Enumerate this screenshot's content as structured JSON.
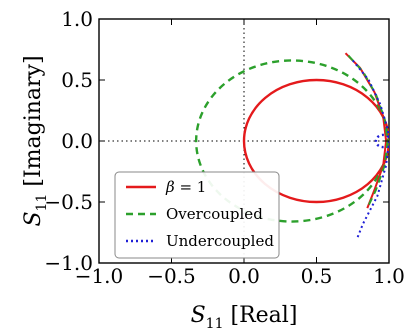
{
  "chart_data": {
    "type": "line",
    "title": "",
    "xlabel": {
      "symbol": "S",
      "sub": "11",
      "text": "[Real]"
    },
    "ylabel": {
      "symbol": "S",
      "sub": "11",
      "text": "[Imaginary]"
    },
    "xlim": [
      -1.0,
      1.0
    ],
    "ylim": [
      -1.0,
      1.0
    ],
    "xticks": [
      "−1.0",
      "−0.5",
      "0.0",
      "0.5",
      "1.0"
    ],
    "yticks": [
      "−1.0",
      "−0.5",
      "0.0",
      "0.5",
      "1.0"
    ],
    "xtick_values": [
      -1.0,
      -0.5,
      0.0,
      0.5,
      1.0
    ],
    "ytick_values": [
      -1.0,
      -0.5,
      0.0,
      0.5,
      1.0
    ],
    "reference_lines": {
      "x": 0.0,
      "y": 0.0,
      "style": "dotted"
    },
    "legend_position": "lower-left",
    "series": [
      {
        "name": "β = 1",
        "name_parts": {
          "symbol": "β",
          "rest": " = 1"
        },
        "color": "#e41a1c",
        "style": "solid",
        "circle_center": [
          0.5,
          0.0
        ],
        "circle_radius": 0.5,
        "arc_theta_deg": [
          -180,
          180
        ],
        "outer_arc": {
          "center": [
            0.5,
            0.0
          ],
          "radius": 0.5,
          "range_deg": [
            0,
            0
          ]
        }
      },
      {
        "name": "Overcoupled",
        "color": "#2ca02c",
        "style": "dashed",
        "circle_center": [
          0.33,
          0.0
        ],
        "circle_radius": 0.66,
        "arc_theta_deg": [
          -180,
          180
        ]
      },
      {
        "name": "Undercoupled",
        "color": "#1f1fd6",
        "style": "dotted",
        "circle_center": [
          0.96,
          0.0
        ],
        "circle_radius": 0.05,
        "arc_theta_deg": [
          -180,
          180
        ]
      }
    ],
    "outer_arcs": [
      {
        "series": "β = 1",
        "points": [
          [
            0.7,
            0.72
          ],
          [
            0.8,
            0.6
          ],
          [
            0.9,
            0.4
          ],
          [
            0.96,
            0.2
          ],
          [
            0.98,
            0.0
          ],
          [
            0.96,
            -0.2
          ],
          [
            0.9,
            -0.4
          ],
          [
            0.85,
            -0.55
          ]
        ]
      },
      {
        "series": "Overcoupled",
        "points": [
          [
            0.72,
            0.7
          ],
          [
            0.82,
            0.57
          ],
          [
            0.91,
            0.38
          ],
          [
            0.97,
            0.18
          ],
          [
            0.99,
            0.0
          ],
          [
            0.97,
            -0.2
          ],
          [
            0.91,
            -0.4
          ],
          [
            0.85,
            -0.55
          ]
        ]
      },
      {
        "series": "Undercoupled",
        "points": [
          [
            0.75,
            0.66
          ],
          [
            0.86,
            0.5
          ],
          [
            0.94,
            0.3
          ],
          [
            0.99,
            0.1
          ],
          [
            1.0,
            0.0
          ],
          [
            0.98,
            -0.2
          ],
          [
            0.92,
            -0.45
          ],
          [
            0.82,
            -0.68
          ],
          [
            0.78,
            -0.8
          ]
        ]
      }
    ]
  }
}
